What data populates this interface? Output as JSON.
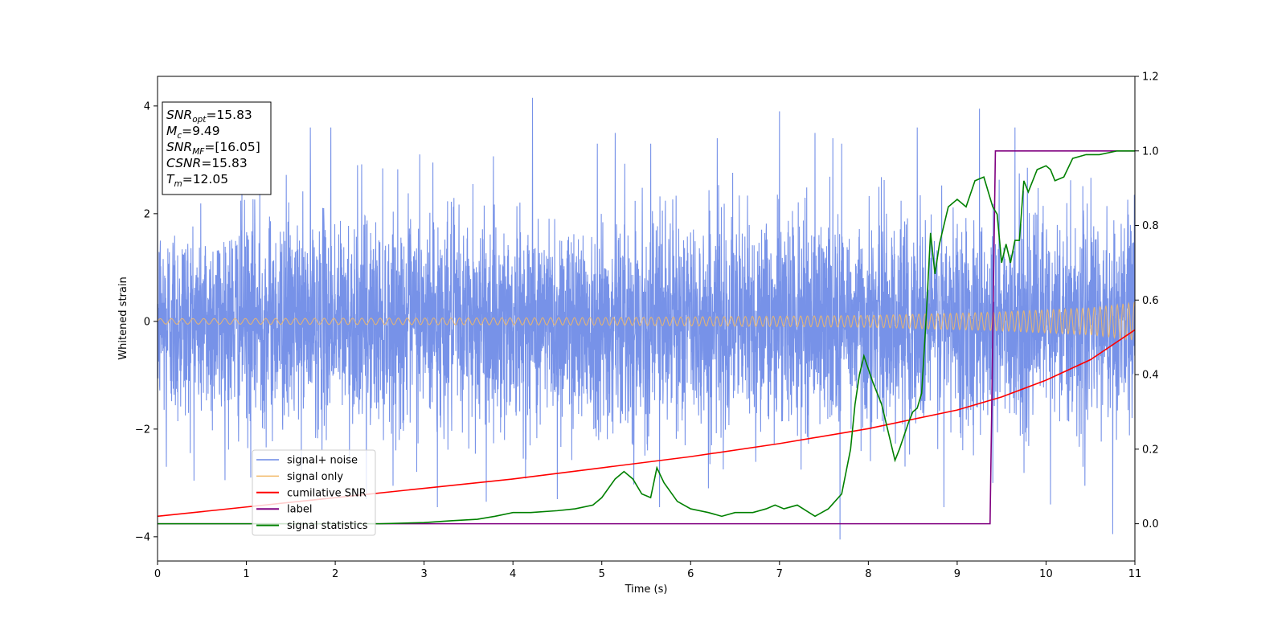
{
  "chart_data": {
    "type": "line",
    "xlabel": "Time (s)",
    "ylabel": "Whitened strain",
    "xlim": [
      0,
      11
    ],
    "ylim_left": [
      -4.45,
      4.55
    ],
    "ylim_right": [
      -0.1,
      1.2
    ],
    "x_ticks": [
      "0",
      "1",
      "2",
      "3",
      "4",
      "5",
      "6",
      "7",
      "8",
      "9",
      "10",
      "11"
    ],
    "y_ticks_left": [
      "−4",
      "−2",
      "0",
      "2",
      "4"
    ],
    "y_ticks_right": [
      "0.0",
      "0.2",
      "0.4",
      "0.6",
      "0.8",
      "1.0",
      "1.2"
    ],
    "grid": false,
    "legend_position": "lower-left",
    "legend": [
      {
        "label": "signal+ noise",
        "color": "#6b89e6"
      },
      {
        "label": "signal only",
        "color": "#f2b866"
      },
      {
        "label": "cumilative SNR",
        "color": "#ff0000"
      },
      {
        "label": "label",
        "color": "#800080"
      },
      {
        "label": "signal statistics",
        "color": "#008000"
      }
    ],
    "info_box": [
      {
        "name": "SNR",
        "sub": "opt",
        "value": "=15.83"
      },
      {
        "name": "M",
        "sub": "c",
        "value": "=9.49"
      },
      {
        "name": "SNR",
        "sub": "MF",
        "value": "=[16.05]"
      },
      {
        "name": "CSNR",
        "sub": "",
        "value": "=15.83"
      },
      {
        "name": "T",
        "sub": "m",
        "value": "=12.05"
      }
    ],
    "series": [
      {
        "name": "signal+ noise",
        "axis": "left",
        "color": "#6b89e6",
        "description_values": {
          "approx_std": 1.0,
          "max": 4.15,
          "min": -4.05
        },
        "spikes": [
          [
            0.95,
            2.45
          ],
          [
            1.15,
            2.55
          ],
          [
            1.45,
            2.72
          ],
          [
            1.72,
            3.6
          ],
          [
            1.95,
            3.6
          ],
          [
            2.25,
            2.9
          ],
          [
            2.95,
            3.1
          ],
          [
            3.1,
            2.95
          ],
          [
            3.55,
            2.55
          ],
          [
            4.22,
            4.15
          ],
          [
            4.95,
            3.3
          ],
          [
            5.15,
            3.5
          ],
          [
            5.55,
            3.3
          ],
          [
            6.3,
            3.4
          ],
          [
            7.0,
            3.9
          ],
          [
            7.4,
            3.5
          ],
          [
            7.6,
            3.4
          ],
          [
            7.7,
            3.3
          ],
          [
            8.55,
            3.6
          ],
          [
            9.25,
            3.95
          ],
          [
            9.65,
            3.6
          ],
          [
            0.1,
            -2.7
          ],
          [
            1.05,
            -2.9
          ],
          [
            2.35,
            -3.3
          ],
          [
            3.15,
            -3.45
          ],
          [
            3.7,
            -3.35
          ],
          [
            4.5,
            -3.3
          ],
          [
            5.65,
            -3.45
          ],
          [
            6.2,
            -3.1
          ],
          [
            7.68,
            -4.05
          ],
          [
            8.85,
            -3.45
          ],
          [
            9.4,
            -3.0
          ],
          [
            10.05,
            -3.4
          ],
          [
            10.75,
            -3.95
          ]
        ]
      },
      {
        "name": "signal only",
        "axis": "left",
        "color": "#f2b866",
        "amplitude_envelope": [
          [
            0,
            0.05
          ],
          [
            5,
            0.07
          ],
          [
            8,
            0.11
          ],
          [
            9.4,
            0.17
          ],
          [
            10.5,
            0.25
          ],
          [
            11,
            0.35
          ]
        ]
      },
      {
        "name": "cumilative SNR",
        "axis": "right",
        "color": "#ff0000",
        "x": [
          0,
          1,
          2,
          3,
          4,
          5,
          6,
          7,
          8,
          9,
          9.5,
          10,
          10.5,
          11
        ],
        "y": [
          0.02,
          0.045,
          0.07,
          0.095,
          0.12,
          0.15,
          0.18,
          0.215,
          0.255,
          0.305,
          0.34,
          0.385,
          0.44,
          0.52
        ]
      },
      {
        "name": "label",
        "axis": "right",
        "color": "#800080",
        "x": [
          0,
          9.37,
          9.43,
          11
        ],
        "y": [
          0.0,
          0.0,
          1.0,
          1.0
        ]
      },
      {
        "name": "signal statistics",
        "axis": "right",
        "color": "#008000",
        "x": [
          0,
          0.5,
          1,
          1.5,
          2,
          2.5,
          3,
          3.3,
          3.6,
          3.8,
          4.0,
          4.2,
          4.5,
          4.7,
          4.9,
          5.0,
          5.15,
          5.25,
          5.35,
          5.45,
          5.55,
          5.62,
          5.7,
          5.85,
          6.0,
          6.2,
          6.35,
          6.5,
          6.7,
          6.85,
          6.95,
          7.05,
          7.2,
          7.4,
          7.55,
          7.7,
          7.8,
          7.85,
          7.9,
          7.95,
          8.05,
          8.15,
          8.25,
          8.3,
          8.35,
          8.45,
          8.5,
          8.55,
          8.6,
          8.65,
          8.7,
          8.75,
          8.8,
          8.9,
          9.0,
          9.1,
          9.2,
          9.3,
          9.4,
          9.45,
          9.5,
          9.55,
          9.6,
          9.65,
          9.7,
          9.75,
          9.8,
          9.9,
          10.0,
          10.05,
          10.1,
          10.2,
          10.3,
          10.45,
          10.6,
          10.8,
          11.0
        ],
        "y": [
          0.0,
          0.0,
          0.0,
          0.0,
          0.0,
          0.0,
          0.003,
          0.008,
          0.012,
          0.02,
          0.03,
          0.03,
          0.035,
          0.04,
          0.05,
          0.07,
          0.12,
          0.14,
          0.12,
          0.08,
          0.07,
          0.15,
          0.11,
          0.06,
          0.04,
          0.03,
          0.02,
          0.03,
          0.03,
          0.04,
          0.05,
          0.04,
          0.05,
          0.02,
          0.04,
          0.08,
          0.2,
          0.32,
          0.4,
          0.45,
          0.38,
          0.32,
          0.22,
          0.17,
          0.2,
          0.27,
          0.3,
          0.31,
          0.35,
          0.55,
          0.78,
          0.67,
          0.75,
          0.85,
          0.87,
          0.85,
          0.92,
          0.93,
          0.85,
          0.83,
          0.7,
          0.75,
          0.7,
          0.76,
          0.76,
          0.92,
          0.89,
          0.95,
          0.96,
          0.95,
          0.92,
          0.93,
          0.98,
          0.99,
          0.99,
          1.0,
          1.0
        ]
      }
    ]
  }
}
